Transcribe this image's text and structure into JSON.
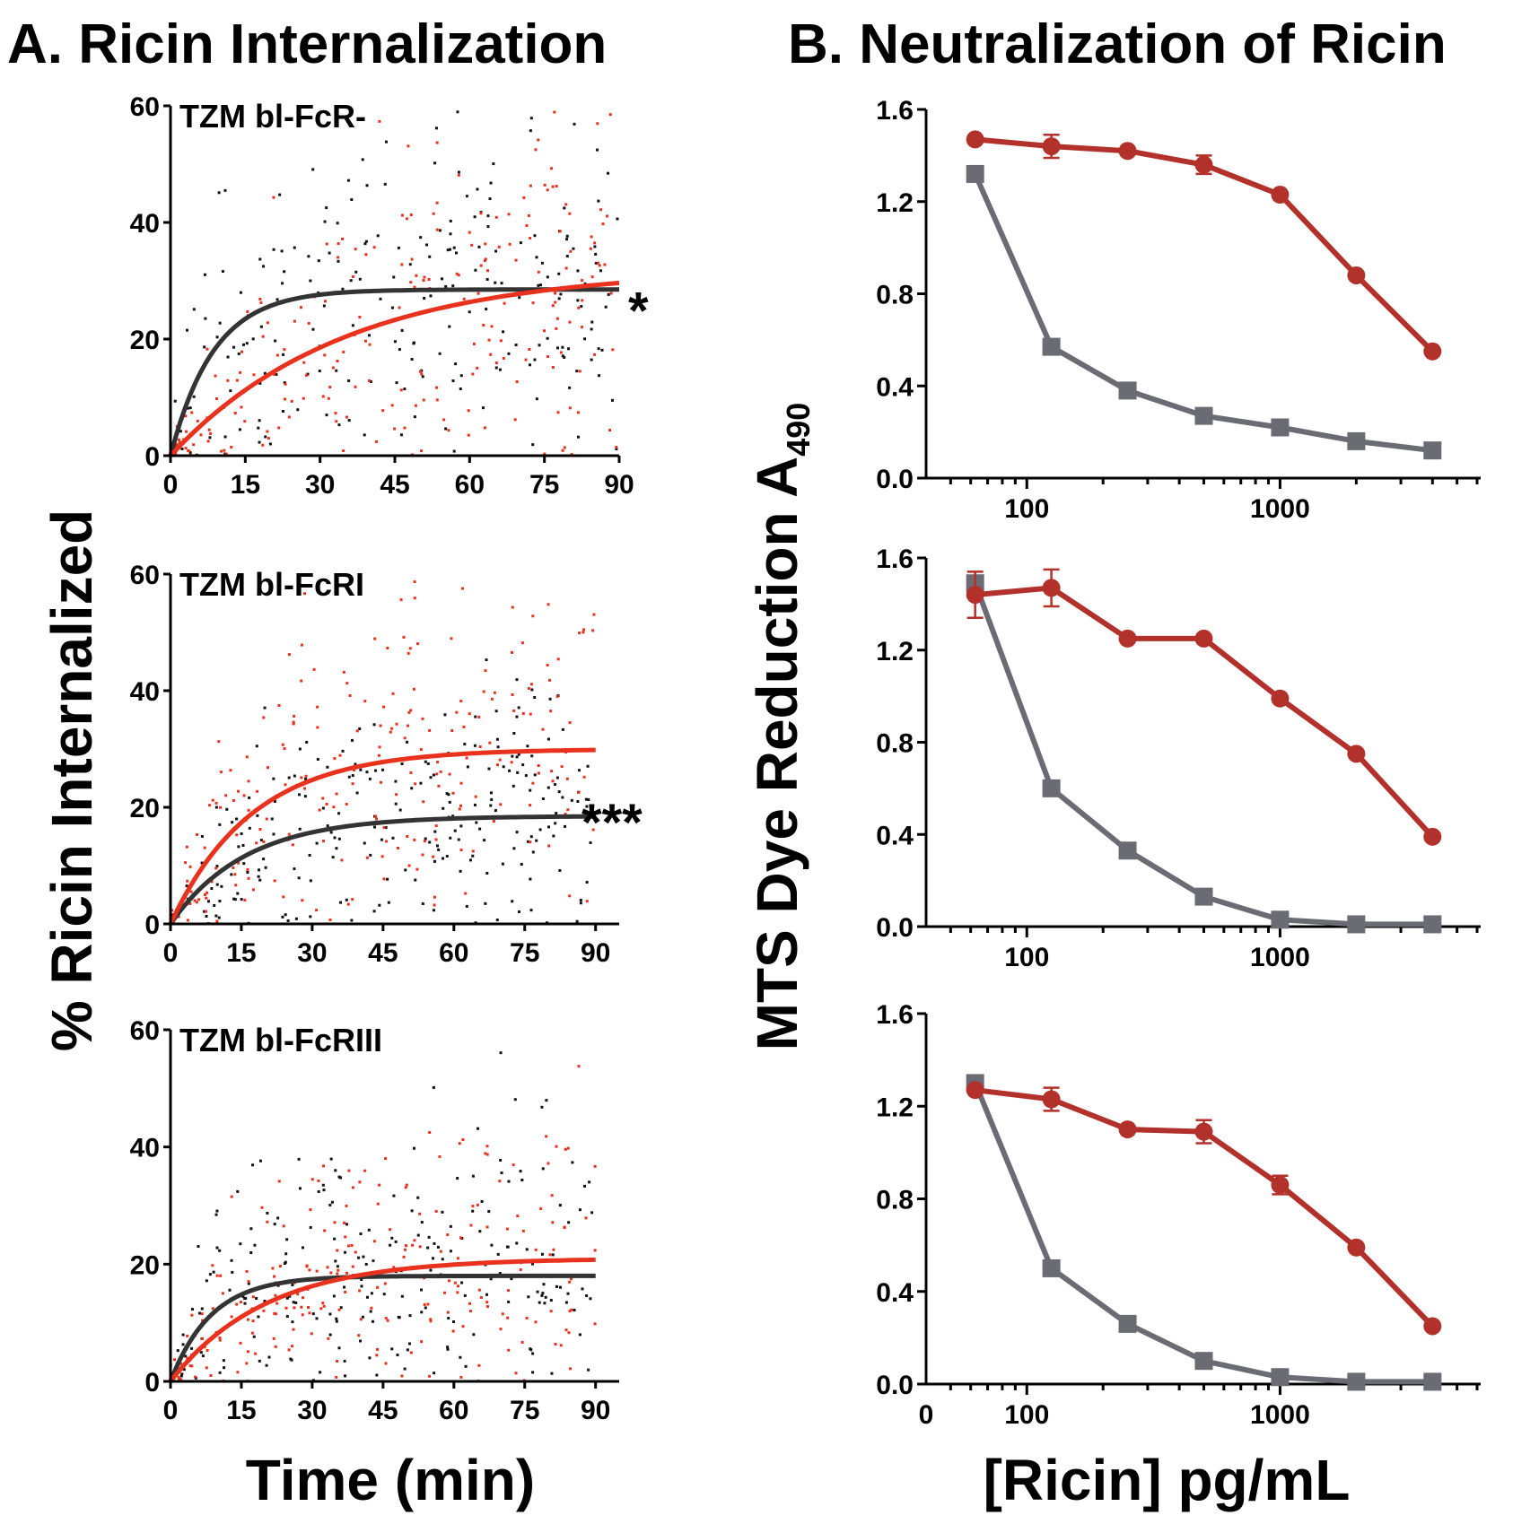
{
  "chart_data": [
    {
      "id": "A",
      "type": "scatter",
      "title": "A. Ricin Internalization",
      "ylabel": "% Ricin Internalized",
      "xlabel": "Time (min)",
      "colors": {
        "black_series": "#111111",
        "red_series": "#e8321e",
        "black_fit": "#333333",
        "red_fit": "#e8321e"
      },
      "panels": [
        {
          "label": "TZM bl-FcR-",
          "significance": "*",
          "xlim": [
            0,
            90
          ],
          "ylim": [
            0,
            60
          ],
          "xticks": [
            0,
            15,
            30,
            45,
            60,
            75,
            90
          ],
          "yticks": [
            0,
            20,
            40,
            60
          ],
          "series": [
            {
              "color": "black",
              "fit_plateau": 28.5,
              "fit_halftime": 6.0,
              "fit_end": 27.0
            },
            {
              "color": "red",
              "fit_plateau": 32.0,
              "fit_halftime": 24.0,
              "fit_end": 25.0
            }
          ]
        },
        {
          "label": "TZM bl-FcRI",
          "significance": "***",
          "xlim": [
            0,
            95
          ],
          "ylim": [
            0,
            60
          ],
          "xticks": [
            0,
            15,
            30,
            45,
            60,
            75,
            90
          ],
          "yticks": [
            0,
            20,
            40,
            60
          ],
          "series": [
            {
              "color": "black",
              "fit_plateau": 18.5,
              "fit_halftime": 11.0,
              "fit_end": 16.5
            },
            {
              "color": "red",
              "fit_plateau": 30.0,
              "fit_halftime": 12.0,
              "fit_end": 26.5
            }
          ]
        },
        {
          "label": "TZM bl-FcRIII",
          "significance": "",
          "xlim": [
            0,
            95
          ],
          "ylim": [
            0,
            60
          ],
          "xticks": [
            0,
            15,
            30,
            45,
            60,
            75,
            90
          ],
          "yticks": [
            0,
            20,
            40,
            60
          ],
          "series": [
            {
              "color": "black",
              "fit_plateau": 18.0,
              "fit_halftime": 6.0,
              "fit_end": 17.0
            },
            {
              "color": "red",
              "fit_plateau": 21.0,
              "fit_halftime": 14.0,
              "fit_end": 18.5
            }
          ]
        }
      ]
    },
    {
      "id": "B",
      "type": "line",
      "title": "B. Neutralization of Ricin",
      "ylabel": "MTS Dye Reduction A",
      "ylabel_subscript": "490",
      "xlabel": "[Ricin] pg/mL",
      "x_scale": "log",
      "x": [
        62.5,
        125,
        250,
        500,
        1000,
        2000,
        4000
      ],
      "xticks": [
        100,
        1000
      ],
      "yticks": [
        0.0,
        0.4,
        0.8,
        1.2,
        1.6
      ],
      "ytick_labels": [
        "0.0",
        "0.4",
        "0.8",
        "1.2",
        "1.6"
      ],
      "ylim": [
        0,
        1.6
      ],
      "colors": {
        "red": "#b2312a",
        "gray": "#6b6b74"
      },
      "panels": [
        {
          "extra_xtick_label": "",
          "series": [
            {
              "color": "red",
              "marker": "circle",
              "values": [
                1.47,
                1.44,
                1.42,
                1.36,
                1.23,
                0.88,
                0.55
              ],
              "err": [
                0.02,
                0.05,
                0.02,
                0.04,
                0.02,
                0.02,
                0.02
              ]
            },
            {
              "color": "gray",
              "marker": "square",
              "values": [
                1.32,
                0.57,
                0.38,
                0.27,
                0.22,
                0.16,
                0.12
              ],
              "err": [
                0,
                0,
                0,
                0,
                0,
                0,
                0
              ]
            }
          ]
        },
        {
          "extra_xtick_label": "",
          "series": [
            {
              "color": "red",
              "marker": "circle",
              "values": [
                1.44,
                1.47,
                1.25,
                1.25,
                0.99,
                0.75,
                0.39
              ],
              "err": [
                0.1,
                0.08,
                0.02,
                0.02,
                0.02,
                0.02,
                0.02
              ]
            },
            {
              "color": "gray",
              "marker": "square",
              "values": [
                1.49,
                0.6,
                0.33,
                0.13,
                0.03,
                0.01,
                0.01
              ],
              "err": [
                0,
                0,
                0,
                0,
                0,
                0,
                0
              ]
            }
          ]
        },
        {
          "extra_xtick_label": "0",
          "series": [
            {
              "color": "red",
              "marker": "circle",
              "values": [
                1.27,
                1.23,
                1.1,
                1.09,
                0.86,
                0.59,
                0.25
              ],
              "err": [
                0.02,
                0.05,
                0.02,
                0.05,
                0.04,
                0.02,
                0.02
              ]
            },
            {
              "color": "gray",
              "marker": "square",
              "values": [
                1.3,
                0.5,
                0.26,
                0.1,
                0.03,
                0.01,
                0.01
              ],
              "err": [
                0,
                0,
                0,
                0,
                0,
                0,
                0
              ]
            }
          ]
        }
      ]
    }
  ]
}
